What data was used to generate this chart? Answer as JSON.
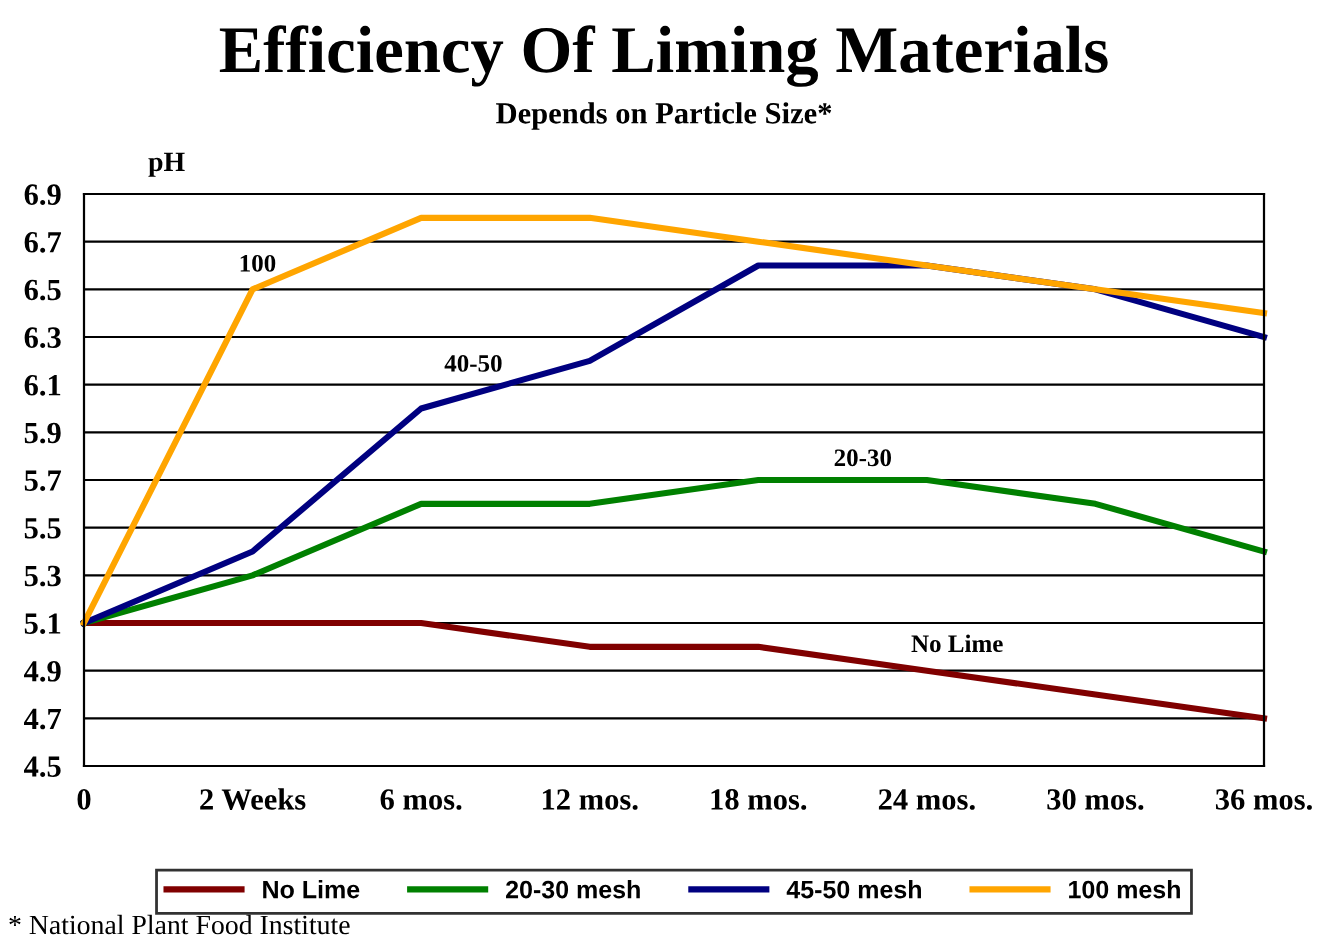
{
  "chart_data": {
    "type": "line",
    "title": "Efficiency Of Liming Materials",
    "subtitle": "Depends on Particle Size*",
    "ylabel": "pH",
    "categories": [
      "0",
      "2 Weeks",
      "6 mos.",
      "12 mos.",
      "18 mos.",
      "24 mos.",
      "30 mos.",
      "36 mos."
    ],
    "series": [
      {
        "name": "No Lime",
        "color": "#800000",
        "values": [
          5.1,
          5.1,
          5.1,
          5.0,
          5.0,
          4.9,
          4.8,
          4.7
        ]
      },
      {
        "name": "20-30 mesh",
        "color": "#008000",
        "values": [
          5.1,
          5.3,
          5.6,
          5.6,
          5.7,
          5.7,
          5.6,
          5.4
        ]
      },
      {
        "name": "45-50 mesh",
        "color": "#000080",
        "values": [
          5.1,
          5.4,
          6.0,
          6.2,
          6.6,
          6.6,
          6.5,
          6.3
        ]
      },
      {
        "name": "100 mesh",
        "color": "#ffa500",
        "values": [
          5.1,
          6.5,
          6.8,
          6.8,
          6.7,
          6.6,
          6.5,
          6.4
        ]
      }
    ],
    "ylim": [
      4.5,
      6.9
    ],
    "yticks": [
      4.5,
      4.7,
      4.9,
      5.1,
      5.3,
      5.5,
      5.7,
      5.9,
      6.1,
      6.3,
      6.5,
      6.7,
      6.9
    ],
    "grid": "y",
    "legend": "bottom",
    "marker": "none",
    "line_style": "solid",
    "annotations": [
      "100",
      "40-50",
      "20-30",
      "No Lime",
      "* National Plant Food Institute"
    ]
  }
}
